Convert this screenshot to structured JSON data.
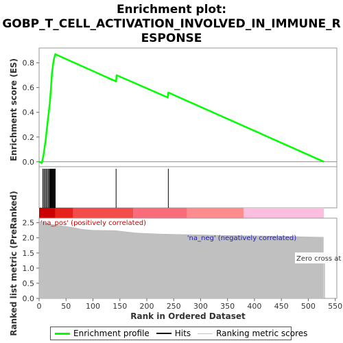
{
  "chart_data": {
    "type": "line",
    "title_lines": [
      "Enrichment plot:",
      "GOBP_T_CELL_ACTIVATION_INVOLVED_IN_IMMUNE_R",
      "ESPONSE"
    ],
    "xlabel": "Rank in Ordered Dataset",
    "es_ylabel": "Enrichment score (ES)",
    "metric_ylabel": "Ranked list metric (PreRanked)",
    "xlim": [
      0,
      553
    ],
    "xticks": [
      0,
      50,
      100,
      150,
      200,
      250,
      300,
      350,
      400,
      450,
      500,
      550
    ],
    "es_ylim": [
      -0.04,
      0.92
    ],
    "es_yticks": [
      0.0,
      0.2,
      0.4,
      0.6,
      0.8
    ],
    "es_ytick_labels": [
      "0.0",
      "0.2",
      "0.4",
      "0.6",
      "0.8"
    ],
    "metric_ylim": [
      0,
      2.65
    ],
    "metric_yticks": [
      0.0,
      0.5,
      1.0,
      1.5,
      2.0,
      2.5
    ],
    "metric_ytick_labels": [
      "0.0",
      "0.5",
      "1.0",
      "1.5",
      "2.0",
      "2.5"
    ],
    "series": [
      {
        "name": "Enrichment profile",
        "color": "#00ff00",
        "x": [
          0,
          5,
          8,
          10,
          12,
          14,
          16,
          18,
          20,
          22,
          24,
          27,
          30,
          143,
          144,
          239,
          240,
          529
        ],
        "y": [
          0.0,
          -0.01,
          0.05,
          0.11,
          0.17,
          0.25,
          0.33,
          0.4,
          0.48,
          0.6,
          0.72,
          0.82,
          0.87,
          0.65,
          0.7,
          0.52,
          0.56,
          0.0
        ]
      }
    ],
    "hits": [
      7,
      9,
      11,
      13,
      15,
      17,
      19,
      20,
      21,
      22,
      23,
      24,
      25,
      26,
      27,
      28,
      29,
      30,
      143,
      240
    ],
    "metric": {
      "x": [
        0,
        20,
        40,
        60,
        80,
        100,
        140,
        180,
        220,
        260,
        300,
        340,
        380,
        420,
        460,
        500,
        528
      ],
      "y": [
        2.55,
        2.45,
        2.4,
        2.35,
        2.28,
        2.25,
        2.24,
        2.16,
        2.13,
        2.11,
        2.1,
        2.08,
        2.07,
        2.06,
        2.05,
        2.03,
        2.02
      ]
    },
    "zero_cross_x": 530,
    "colorbar": [
      {
        "from": 0,
        "to": 30,
        "color": "#cc0000"
      },
      {
        "from": 30,
        "to": 63,
        "color": "#e8211c"
      },
      {
        "from": 63,
        "to": 175,
        "color": "#f44b4b"
      },
      {
        "from": 175,
        "to": 275,
        "color": "#fb6c7a"
      },
      {
        "from": 275,
        "to": 380,
        "color": "#fd8c8c"
      },
      {
        "from": 380,
        "to": 529,
        "color": "#fbbde0"
      }
    ],
    "annotations": {
      "pos": "'na_pos' (positively correlated)",
      "neg": "'na_neg' (negatively correlated)",
      "zero": "Zero cross at"
    },
    "legend_placement": "bottom",
    "legend": [
      {
        "label": "Enrichment profile",
        "color": "#00ff00"
      },
      {
        "label": "Hits",
        "color": "#000000"
      },
      {
        "label": "Ranking metric scores",
        "color": "#c0c0c0"
      }
    ]
  }
}
